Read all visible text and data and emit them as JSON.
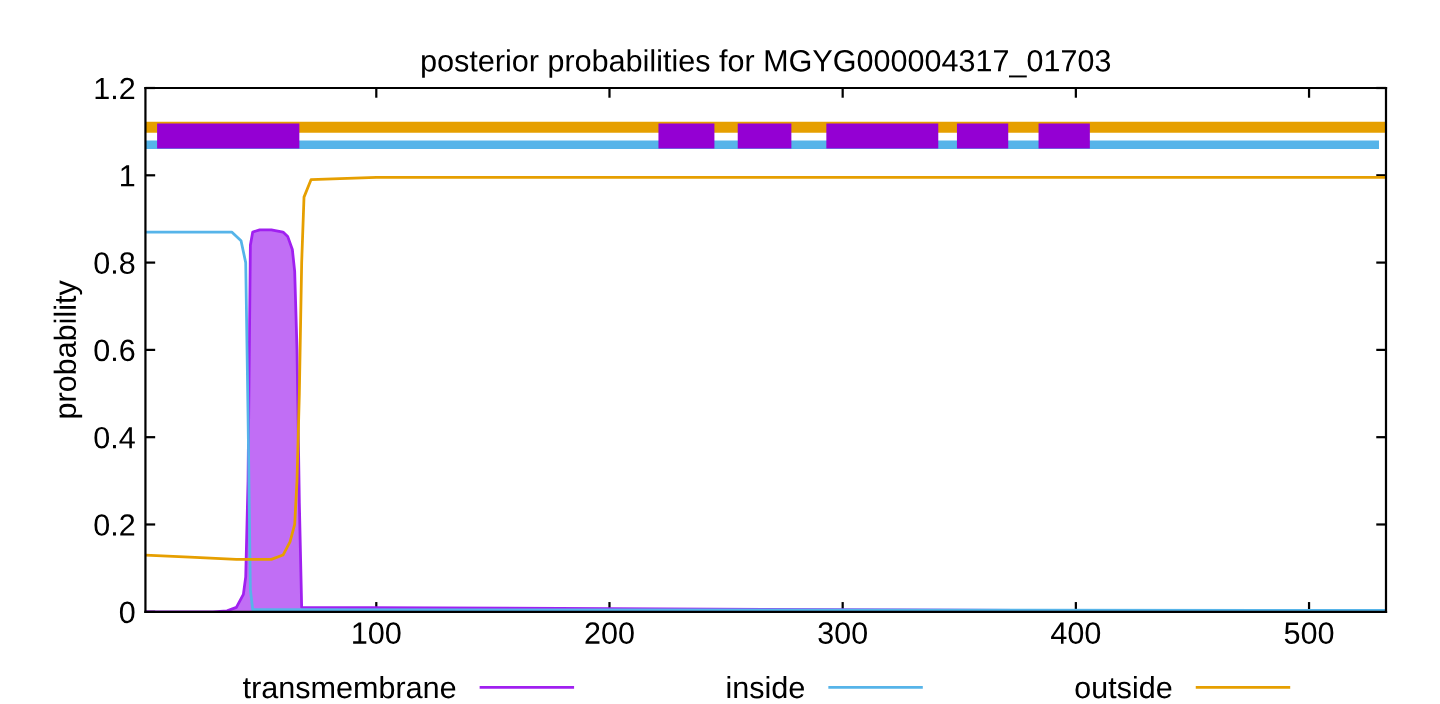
{
  "chart_data": {
    "type": "line",
    "title": "posterior probabilities for MGYG000004317_01703",
    "ylabel": "probability",
    "xlim": [
      1,
      533
    ],
    "ylim": [
      0,
      1.2
    ],
    "xticks": [
      100,
      200,
      300,
      400,
      500
    ],
    "yticks": [
      0,
      0.2,
      0.4,
      0.6,
      0.8,
      1,
      1.2
    ],
    "grid": false,
    "legend": "bottom",
    "series": [
      {
        "name": "transmembrane",
        "type": "area",
        "color": "#a020f0",
        "x": [
          1,
          30,
          36,
          40,
          43,
          44,
          45,
          46,
          47,
          50,
          55,
          60,
          62,
          64,
          65,
          66,
          67,
          68,
          533
        ],
        "values": [
          0,
          0,
          0.002,
          0.01,
          0.04,
          0.08,
          0.3,
          0.84,
          0.87,
          0.875,
          0.875,
          0.87,
          0.86,
          0.83,
          0.78,
          0.6,
          0.25,
          0.01,
          0
        ]
      },
      {
        "name": "inside",
        "color": "#56b4e9",
        "x": [
          1,
          38,
          42,
          44,
          45,
          46,
          47,
          533
        ],
        "values": [
          0.87,
          0.87,
          0.85,
          0.8,
          0.45,
          0.05,
          0.005,
          0.003
        ]
      },
      {
        "name": "outside",
        "color": "#e69f00",
        "x": [
          1,
          20,
          40,
          55,
          60,
          63,
          65,
          66,
          67,
          68,
          69,
          72,
          100,
          533
        ],
        "values": [
          0.13,
          0.125,
          0.12,
          0.12,
          0.13,
          0.16,
          0.2,
          0.3,
          0.5,
          0.8,
          0.95,
          0.99,
          0.995,
          0.995
        ]
      },
      {
        "color": "#e69f00",
        "x": [
          1,
          533
        ],
        "values": [
          1.11,
          1.11
        ]
      },
      {
        "color": "#56b4e9",
        "x": [
          1,
          530
        ],
        "values": [
          1.07,
          1.07
        ]
      },
      {
        "color": "#9400d3",
        "x": [
          6,
          67
        ],
        "values": [
          1.09,
          1.09
        ]
      },
      {
        "color": "#9400d3",
        "x": [
          221,
          245
        ],
        "values": [
          1.09,
          1.09
        ]
      },
      {
        "color": "#9400d3",
        "x": [
          255,
          278
        ],
        "values": [
          1.09,
          1.09
        ]
      },
      {
        "color": "#9400d3",
        "x": [
          293,
          341
        ],
        "values": [
          1.09,
          1.09
        ]
      },
      {
        "color": "#9400d3",
        "x": [
          349,
          371
        ],
        "values": [
          1.09,
          1.09
        ]
      },
      {
        "color": "#9400d3",
        "x": [
          384,
          406
        ],
        "values": [
          1.09,
          1.09
        ]
      }
    ]
  }
}
